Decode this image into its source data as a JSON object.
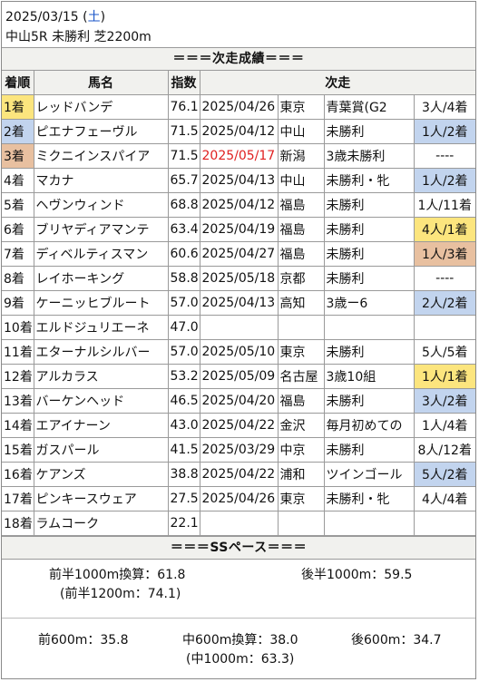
{
  "header": {
    "date": "2025/03/15",
    "dow_open": " (",
    "dow": "土",
    "dow_close": ")",
    "race": "中山5R 未勝利 芝2200m"
  },
  "results_title": "＝＝＝次走成績＝＝＝",
  "columns": {
    "rank": "着順",
    "horse": "馬名",
    "index": "指数",
    "next": "次走"
  },
  "colors": {
    "gold": "#fce57e",
    "blue": "#c2d4ee",
    "bronze": "#e8c0a0",
    "date_red": "#e02020",
    "dow_blue": "#1a56c9"
  },
  "rows": [
    {
      "rank": "1着",
      "rank_bg": "gold",
      "horse": "レッドバンデ",
      "index": "76.1",
      "date": "2025/04/26",
      "venue": "東京",
      "race": "青葉賞(G2",
      "result": "3人/4着",
      "result_bg": ""
    },
    {
      "rank": "2着",
      "rank_bg": "blue",
      "horse": "ピエナフェーヴル",
      "index": "71.5",
      "date": "2025/04/12",
      "venue": "中山",
      "race": "未勝利",
      "result": "1人/2着",
      "result_bg": "blue"
    },
    {
      "rank": "3着",
      "rank_bg": "bronze",
      "horse": "ミクニインスパイア",
      "index": "71.5",
      "date": "2025/05/17",
      "date_red": true,
      "venue": "新潟",
      "race": "3歳未勝利",
      "result": "----",
      "result_bg": ""
    },
    {
      "rank": "4着",
      "rank_bg": "",
      "horse": "マカナ",
      "index": "65.7",
      "date": "2025/04/13",
      "venue": "中山",
      "race": "未勝利・牝",
      "result": "1人/2着",
      "result_bg": "blue"
    },
    {
      "rank": "5着",
      "rank_bg": "",
      "horse": "ヘヴンウィンド",
      "index": "68.8",
      "date": "2025/04/12",
      "venue": "福島",
      "race": "未勝利",
      "result": "1人/11着",
      "result_bg": ""
    },
    {
      "rank": "6着",
      "rank_bg": "",
      "horse": "ブリヤディアマンテ",
      "index": "63.4",
      "date": "2025/04/19",
      "venue": "福島",
      "race": "未勝利",
      "result": "4人/1着",
      "result_bg": "gold"
    },
    {
      "rank": "7着",
      "rank_bg": "",
      "horse": "ディベルティスマン",
      "index": "60.6",
      "date": "2025/04/27",
      "venue": "福島",
      "race": "未勝利",
      "result": "1人/3着",
      "result_bg": "bronze"
    },
    {
      "rank": "8着",
      "rank_bg": "",
      "horse": "レイホーキング",
      "index": "58.8",
      "date": "2025/05/18",
      "venue": "京都",
      "race": "未勝利",
      "result": "----",
      "result_bg": ""
    },
    {
      "rank": "9着",
      "rank_bg": "",
      "horse": "ケーニッヒブルート",
      "index": "57.0",
      "date": "2025/04/13",
      "venue": "高知",
      "race": "3歳ー6",
      "result": "2人/2着",
      "result_bg": "blue"
    },
    {
      "rank": "10着",
      "rank_bg": "",
      "horse": "エルドジュリエーネ",
      "index": "47.0",
      "date": "",
      "venue": "",
      "race": "",
      "result": "",
      "result_bg": ""
    },
    {
      "rank": "11着",
      "rank_bg": "",
      "horse": "エターナルシルバー",
      "index": "57.0",
      "date": "2025/05/10",
      "venue": "東京",
      "race": "未勝利",
      "result": "5人/5着",
      "result_bg": ""
    },
    {
      "rank": "12着",
      "rank_bg": "",
      "horse": "アルカラス",
      "index": "53.2",
      "date": "2025/05/09",
      "venue": "名古屋",
      "race": "3歳10組",
      "result": "1人/1着",
      "result_bg": "gold"
    },
    {
      "rank": "13着",
      "rank_bg": "",
      "horse": "バーケンヘッド",
      "index": "46.5",
      "date": "2025/04/20",
      "venue": "福島",
      "race": "未勝利",
      "result": "3人/2着",
      "result_bg": "blue"
    },
    {
      "rank": "14着",
      "rank_bg": "",
      "horse": "エアイナーン",
      "index": "43.0",
      "date": "2025/04/22",
      "venue": "金沢",
      "race": "毎月初めての",
      "result": "1人/4着",
      "result_bg": ""
    },
    {
      "rank": "15着",
      "rank_bg": "",
      "horse": "ガスパール",
      "index": "41.5",
      "date": "2025/03/29",
      "venue": "中京",
      "race": "未勝利",
      "result": "8人/12着",
      "result_bg": ""
    },
    {
      "rank": "16着",
      "rank_bg": "",
      "horse": "ケアンズ",
      "index": "38.8",
      "date": "2025/04/22",
      "venue": "浦和",
      "race": "ツインゴール",
      "result": "5人/2着",
      "result_bg": "blue"
    },
    {
      "rank": "17着",
      "rank_bg": "",
      "horse": "ピンキースウェア",
      "index": "27.5",
      "date": "2025/04/26",
      "venue": "東京",
      "race": "未勝利・牝",
      "result": "4人/4着",
      "result_bg": ""
    },
    {
      "rank": "18着",
      "rank_bg": "",
      "horse": "ラムコーク",
      "index": "22.1",
      "date": "",
      "venue": "",
      "race": "",
      "result": "",
      "result_bg": ""
    }
  ],
  "pace": {
    "title": "＝＝＝SSペース＝＝＝",
    "first1000": "前半1000m換算：61.8",
    "last1000": "後半1000m：59.5",
    "first1200": "(前半1200m：74.1)",
    "first600": "前600m：35.8",
    "mid600": "中600m換算：38.0",
    "last600": "後600m：34.7",
    "mid1000": "(中1000m：63.3)"
  }
}
